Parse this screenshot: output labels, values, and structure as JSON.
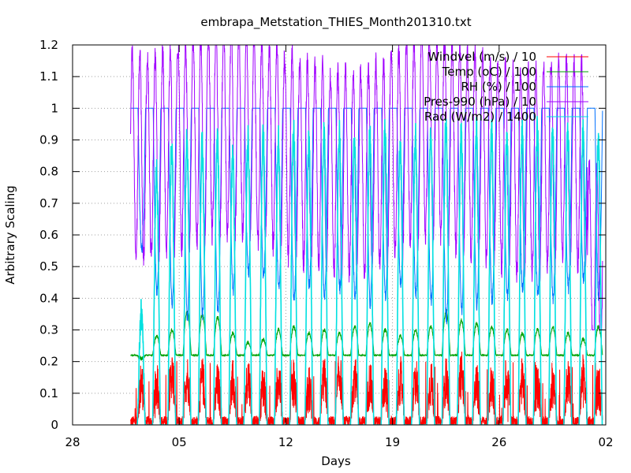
{
  "chart_data": {
    "type": "line",
    "title": "embrapa_Metstation_THIES_Month201310.txt",
    "xlabel": "Days",
    "ylabel": "Arbitrary Scaling",
    "x_day_range": [
      -3,
      32
    ],
    "x_ticks": [
      {
        "day": -3,
        "label": "28"
      },
      {
        "day": 4,
        "label": "05"
      },
      {
        "day": 11,
        "label": "12"
      },
      {
        "day": 18,
        "label": "19"
      },
      {
        "day": 25,
        "label": "26"
      },
      {
        "day": 32,
        "label": "02"
      }
    ],
    "ylim": [
      0,
      1.2
    ],
    "y_ticks": [
      {
        "value": 0,
        "label": "0"
      },
      {
        "value": 0.1,
        "label": "0.1"
      },
      {
        "value": 0.2,
        "label": "0.2"
      },
      {
        "value": 0.3,
        "label": "0.3"
      },
      {
        "value": 0.4,
        "label": "0.4"
      },
      {
        "value": 0.5,
        "label": "0.5"
      },
      {
        "value": 0.6,
        "label": "0.6"
      },
      {
        "value": 0.7,
        "label": "0.7"
      },
      {
        "value": 0.8,
        "label": "0.8"
      },
      {
        "value": 0.9,
        "label": "0.9"
      },
      {
        "value": 1.0,
        "label": "1"
      },
      {
        "value": 1.1,
        "label": "1.1"
      },
      {
        "value": 1.2,
        "label": "1.2"
      }
    ],
    "grid": true,
    "legend_position": "top-right",
    "data_day_range": [
      0.8,
      31.8
    ],
    "series": [
      {
        "name": "Windvel (m/s) / 10",
        "color": "#ff0000",
        "pattern": "daily",
        "night_level": 0.01,
        "day_level": [
          0.13,
          0.12,
          0.16,
          0.15,
          0.14,
          0.12,
          0.13,
          0.15,
          0.12,
          0.14,
          0.13,
          0.11,
          0.14,
          0.16,
          0.15,
          0.13,
          0.12,
          0.14,
          0.15,
          0.13,
          0.14,
          0.16,
          0.12,
          0.13,
          0.15,
          0.14,
          0.12,
          0.13,
          0.14,
          0.15,
          0.12
        ],
        "noise": 0.06,
        "spike_max": 0.21
      },
      {
        "name": "Temp (oC) / 100",
        "color": "#00a000",
        "pattern": "daily",
        "night_level": 0.22,
        "day_level": [
          0.21,
          0.28,
          0.3,
          0.36,
          0.35,
          0.34,
          0.29,
          0.26,
          0.27,
          0.3,
          0.31,
          0.29,
          0.3,
          0.29,
          0.31,
          0.32,
          0.3,
          0.28,
          0.3,
          0.31,
          0.36,
          0.33,
          0.32,
          0.31,
          0.3,
          0.29,
          0.3,
          0.31,
          0.29,
          0.27,
          0.31
        ],
        "noise": 0.005
      },
      {
        "name": "RH (%) / 100",
        "color": "#0070ff",
        "pattern": "daily_inverse",
        "night_level": 1.0,
        "day_level": [
          0.55,
          0.42,
          0.38,
          0.34,
          0.35,
          0.36,
          0.42,
          0.48,
          0.47,
          0.43,
          0.4,
          0.44,
          0.41,
          0.43,
          0.4,
          0.38,
          0.41,
          0.44,
          0.41,
          0.39,
          0.33,
          0.36,
          0.38,
          0.39,
          0.41,
          0.43,
          0.41,
          0.4,
          0.43,
          0.46,
          0.4
        ],
        "noise": 0.02
      },
      {
        "name": "Pres-990 (hPa) / 10",
        "color": "#a000ff",
        "pattern": "semidiurnal",
        "mean": [
          0.85,
          0.85,
          0.86,
          0.88,
          0.9,
          0.92,
          0.93,
          0.92,
          0.9,
          0.88,
          0.85,
          0.83,
          0.82,
          0.8,
          0.8,
          0.8,
          0.82,
          0.86,
          0.9,
          0.92,
          0.9,
          0.88,
          0.86,
          0.84,
          0.82,
          0.8,
          0.8,
          0.82,
          0.84,
          0.82,
          0.5
        ],
        "amplitude": 0.32,
        "noise": 0.04
      },
      {
        "name": "Rad (W/m2) / 1400",
        "color": "#00e0e0",
        "pattern": "solar",
        "peak": [
          0.35,
          0.8,
          0.88,
          0.9,
          0.88,
          0.9,
          0.84,
          0.9,
          0.92,
          0.9,
          0.93,
          0.9,
          0.93,
          0.92,
          0.9,
          0.92,
          0.93,
          0.88,
          0.91,
          0.92,
          0.95,
          0.92,
          0.93,
          0.92,
          0.91,
          0.92,
          0.93,
          0.92,
          0.93,
          0.92,
          0.9
        ],
        "noise": 0.05
      }
    ]
  }
}
